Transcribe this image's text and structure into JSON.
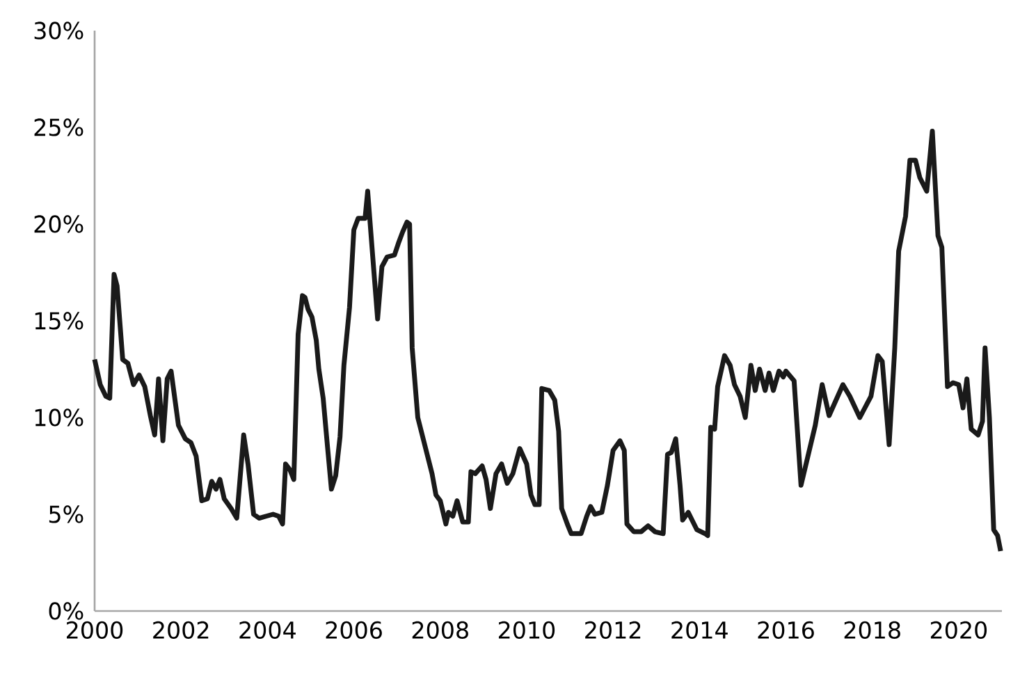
{
  "chart_data": {
    "type": "line",
    "x": [
      2000,
      2000.13,
      2000.26,
      2000.35,
      2000.45,
      2000.52,
      2000.65,
      2000.77,
      2000.9,
      2001.03,
      2001.16,
      2001.29,
      2001.39,
      2001.48,
      2001.58,
      2001.68,
      2001.77,
      2001.94,
      2002.1,
      2002.23,
      2002.35,
      2002.48,
      2002.61,
      2002.71,
      2002.81,
      2002.9,
      2003,
      2003.16,
      2003.29,
      2003.45,
      2003.55,
      2003.68,
      2003.81,
      2003.97,
      2004.13,
      2004.26,
      2004.35,
      2004.42,
      2004.52,
      2004.61,
      2004.71,
      2004.81,
      2004.87,
      2004.94,
      2005.03,
      2005.13,
      2005.19,
      2005.29,
      2005.39,
      2005.48,
      2005.58,
      2005.68,
      2005.77,
      2005.9,
      2006,
      2006.1,
      2006.26,
      2006.32,
      2006.42,
      2006.55,
      2006.65,
      2006.77,
      2006.94,
      2007.03,
      2007.13,
      2007.23,
      2007.29,
      2007.35,
      2007.48,
      2007.81,
      2007.9,
      2008,
      2008.13,
      2008.19,
      2008.29,
      2008.39,
      2008.52,
      2008.65,
      2008.71,
      2008.81,
      2008.97,
      2009.06,
      2009.16,
      2009.29,
      2009.42,
      2009.55,
      2009.68,
      2009.84,
      2010,
      2010.1,
      2010.19,
      2010.29,
      2010.35,
      2010.52,
      2010.65,
      2010.74,
      2010.81,
      2010.94,
      2011.03,
      2011.26,
      2011.39,
      2011.48,
      2011.58,
      2011.74,
      2011.87,
      2012,
      2012.16,
      2012.26,
      2012.32,
      2012.48,
      2012.65,
      2012.81,
      2012.97,
      2013.16,
      2013.26,
      2013.35,
      2013.45,
      2013.55,
      2013.61,
      2013.74,
      2013.94,
      2014.13,
      2014.19,
      2014.26,
      2014.35,
      2014.42,
      2014.58,
      2014.71,
      2014.81,
      2014.94,
      2015.06,
      2015.19,
      2015.29,
      2015.39,
      2015.52,
      2015.61,
      2015.71,
      2015.84,
      2015.94,
      2016,
      2016.19,
      2016.35,
      2016.68,
      2016.84,
      2017,
      2017.32,
      2017.48,
      2017.71,
      2017.97,
      2018.13,
      2018.23,
      2018.39,
      2018.52,
      2018.61,
      2018.77,
      2018.87,
      2019,
      2019.1,
      2019.26,
      2019.39,
      2019.52,
      2019.61,
      2019.74,
      2019.87,
      2020,
      2020.1,
      2020.19,
      2020.29,
      2020.45,
      2020.55,
      2020.61,
      2020.71,
      2020.81,
      2020.9,
      2020.97
    ],
    "series": [
      {
        "color": "#1a1a1a",
        "values": [
          13.0,
          11.7,
          11.1,
          11.0,
          17.4,
          16.8,
          13.0,
          12.8,
          11.7,
          12.2,
          11.6,
          10.1,
          9.1,
          12.0,
          8.8,
          12.0,
          12.4,
          9.6,
          8.9,
          8.7,
          8.0,
          5.7,
          5.8,
          6.7,
          6.3,
          6.8,
          5.8,
          5.3,
          4.8,
          9.1,
          7.6,
          5.0,
          4.8,
          4.9,
          5.0,
          4.9,
          4.5,
          7.6,
          7.3,
          6.8,
          14.3,
          16.3,
          16.2,
          15.6,
          15.2,
          14.0,
          12.5,
          11.0,
          8.5,
          6.3,
          7.0,
          9.0,
          12.7,
          15.7,
          19.7,
          20.3,
          20.3,
          21.7,
          18.8,
          15.1,
          17.8,
          18.3,
          18.4,
          19.0,
          19.6,
          20.1,
          20.0,
          13.6,
          10.0,
          7.1,
          6.0,
          5.7,
          4.5,
          5.1,
          4.9,
          5.7,
          4.6,
          4.6,
          7.2,
          7.1,
          7.5,
          6.8,
          5.3,
          7.1,
          7.6,
          6.6,
          7.1,
          8.4,
          7.6,
          6.0,
          5.5,
          5.5,
          11.5,
          11.4,
          10.9,
          9.3,
          5.3,
          4.5,
          4.0,
          4.0,
          4.9,
          5.4,
          5.0,
          5.1,
          6.5,
          8.3,
          8.8,
          8.3,
          4.5,
          4.1,
          4.1,
          4.4,
          4.1,
          4.0,
          8.1,
          8.2,
          8.9,
          6.5,
          4.7,
          5.1,
          4.2,
          4.0,
          3.9,
          9.5,
          9.4,
          11.6,
          13.2,
          12.7,
          11.7,
          11.1,
          10.0,
          12.7,
          11.4,
          12.5,
          11.4,
          12.3,
          11.4,
          12.4,
          12.1,
          12.4,
          11.9,
          6.5,
          9.6,
          11.7,
          10.1,
          11.7,
          11.1,
          10.0,
          11.1,
          13.2,
          12.9,
          8.6,
          13.6,
          18.6,
          20.4,
          23.3,
          23.3,
          22.4,
          21.7,
          24.8,
          19.4,
          18.8,
          11.6,
          11.8,
          11.7,
          10.5,
          12.0,
          9.4,
          9.1,
          9.8,
          13.6,
          10.0,
          4.2,
          3.9,
          3.1
        ]
      }
    ],
    "xlim": [
      2000,
      2021
    ],
    "xticks": [
      2000,
      2002,
      2004,
      2006,
      2008,
      2010,
      2012,
      2014,
      2016,
      2018,
      2020
    ],
    "ylim": [
      0,
      30
    ],
    "yticks": [
      {
        "value": 0,
        "label": "0%"
      },
      {
        "value": 5,
        "label": "5%"
      },
      {
        "value": 10,
        "label": "10%"
      },
      {
        "value": 15,
        "label": "15%"
      },
      {
        "value": 20,
        "label": "20%"
      },
      {
        "value": 25,
        "label": "25%"
      },
      {
        "value": 30,
        "label": "30%"
      }
    ],
    "grid": false,
    "marker": "none"
  }
}
